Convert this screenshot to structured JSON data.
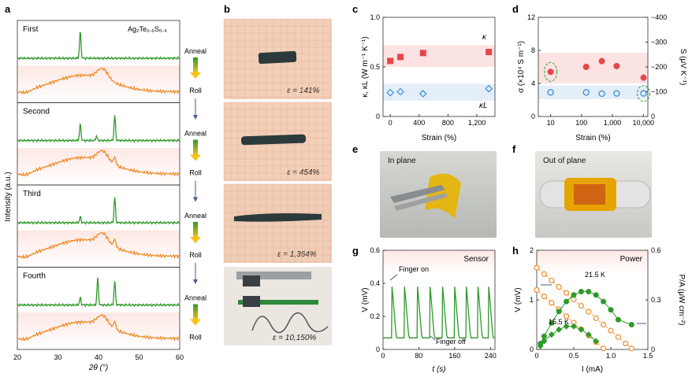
{
  "panels": {
    "a": {
      "letter": "a",
      "compound": "Ag₂Te₀.₆S₀.₄",
      "ylabel": "Intensity (a.u.)",
      "xlabel": "2θ (°)",
      "xticks": [
        "20",
        "30",
        "40",
        "50",
        "60"
      ],
      "rows": [
        "First",
        "Second",
        "Third",
        "Fourth"
      ],
      "steps": {
        "anneal": "Anneal",
        "roll": "Roll"
      }
    },
    "b": {
      "letter": "b",
      "strains": [
        "ε = 141%",
        "ε = 454%",
        "ε = 1,364%",
        "ε = 10,150%"
      ]
    },
    "e": {
      "letter": "e",
      "title": "In plane"
    },
    "f": {
      "letter": "f",
      "title": "Out of plane"
    }
  },
  "chart_data": [
    {
      "id": "c",
      "type": "scatter",
      "letter": "c",
      "xlabel": "Strain (%)",
      "ylabel": "κ, κL (W m⁻¹ K⁻¹)",
      "xticks": [
        "0",
        "400",
        "800",
        "1,200"
      ],
      "yticks": [
        "0",
        "0.5",
        "1.0"
      ],
      "xlim": [
        -100,
        1450
      ],
      "ylim": [
        0,
        1.0
      ],
      "series": [
        {
          "name": "κ",
          "marker": "square",
          "color": "#e8454b",
          "x": [
            0,
            141,
            454,
            1364
          ],
          "y": [
            0.56,
            0.6,
            0.64,
            0.65
          ]
        },
        {
          "name": "κL",
          "marker": "diamond",
          "color": "#3a90d8",
          "x": [
            0,
            141,
            454,
            1364
          ],
          "y": [
            0.24,
            0.25,
            0.23,
            0.28
          ]
        }
      ]
    },
    {
      "id": "d",
      "type": "scatter",
      "letter": "d",
      "xlabel": "Strain (%)",
      "ylabel": "σ (×10⁴ S m⁻¹)",
      "y2label": "S (μV K⁻¹)",
      "xscale": "log",
      "xticks": [
        "10",
        "100",
        "1,000",
        "10,000"
      ],
      "yticks": [
        "0",
        "4",
        "8",
        "12"
      ],
      "y2ticks": [
        "0",
        "−100",
        "−200",
        "−300",
        "−400"
      ],
      "xlim": [
        4,
        14000
      ],
      "ylim": [
        0,
        12
      ],
      "y2lim": [
        0,
        -400
      ],
      "series": [
        {
          "name": "σ",
          "marker": "circle",
          "color": "#e8454b",
          "x": [
            10,
            141,
            454,
            1364,
            10150
          ],
          "y": [
            5.4,
            6.0,
            6.7,
            6.1,
            4.7
          ]
        },
        {
          "name": "S",
          "marker": "ring",
          "color": "#3a90d8",
          "axis": "right",
          "x": [
            10,
            141,
            454,
            1364,
            10150
          ],
          "y": [
            -97,
            -97,
            -92,
            -93,
            -93
          ]
        }
      ]
    },
    {
      "id": "g",
      "type": "line",
      "letter": "g",
      "title": "Sensor",
      "xlabel": "t (s)",
      "ylabel": "V (mV)",
      "xticks": [
        "0",
        "80",
        "160",
        "240"
      ],
      "yticks": [
        "0",
        "0.2",
        "0.4",
        "0.6"
      ],
      "xlim": [
        0,
        250
      ],
      "ylim": [
        0,
        0.6
      ],
      "baseline": 0.07,
      "peak": 0.38,
      "peak_times": [
        20,
        48,
        77,
        105,
        133,
        160,
        186,
        212,
        236
      ],
      "annotations": [
        "Finger on",
        "Finger off"
      ]
    },
    {
      "id": "h",
      "type": "scatter",
      "letter": "h",
      "title": "Power",
      "xlabel": "I (mA)",
      "ylabel": "V (mV)",
      "y2label": "P/A (μW cm⁻²)",
      "xticks": [
        "0",
        "0.5",
        "1.0",
        "1.5"
      ],
      "yticks": [
        "0",
        "1",
        "2"
      ],
      "y2ticks": [
        "0",
        "0.3",
        "0.6"
      ],
      "xlim": [
        0,
        1.5
      ],
      "ylim": [
        0,
        2
      ],
      "y2lim": [
        0,
        0.6
      ],
      "series": [
        {
          "name": "21.5 K",
          "kind": "V",
          "marker": "ring",
          "color": "#f08a24",
          "x": [
            0,
            0.1,
            0.2,
            0.3,
            0.4,
            0.5,
            0.6,
            0.7,
            0.8,
            0.9,
            1.0,
            1.1,
            1.2,
            1.28
          ],
          "y": [
            1.65,
            1.52,
            1.39,
            1.26,
            1.14,
            1.01,
            0.88,
            0.76,
            0.63,
            0.5,
            0.38,
            0.25,
            0.12,
            0.02
          ]
        },
        {
          "name": "15.5 K",
          "kind": "V",
          "marker": "ring",
          "color": "#f08a24",
          "x": [
            0,
            0.1,
            0.2,
            0.3,
            0.4,
            0.5,
            0.6,
            0.7,
            0.8,
            0.9
          ],
          "y": [
            1.2,
            1.07,
            0.94,
            0.81,
            0.67,
            0.54,
            0.41,
            0.28,
            0.15,
            0.02
          ]
        },
        {
          "name": "21.5 K",
          "kind": "P",
          "marker": "circle",
          "color": "#2e9a2a",
          "axis": "right",
          "x": [
            0.05,
            0.1,
            0.2,
            0.3,
            0.4,
            0.5,
            0.6,
            0.7,
            0.8,
            0.9,
            1.0,
            1.1,
            1.28
          ],
          "y": [
            0.035,
            0.08,
            0.16,
            0.23,
            0.29,
            0.33,
            0.35,
            0.35,
            0.33,
            0.29,
            0.24,
            0.18,
            0.15
          ]
        },
        {
          "name": "15.5 K",
          "kind": "P",
          "marker": "diamond",
          "color": "#2e9a2a",
          "axis": "right",
          "x": [
            0.05,
            0.1,
            0.2,
            0.3,
            0.4,
            0.5,
            0.6,
            0.7,
            0.8
          ],
          "y": [
            0.02,
            0.05,
            0.09,
            0.12,
            0.14,
            0.14,
            0.12,
            0.09,
            0.05
          ]
        }
      ]
    }
  ],
  "colors": {
    "green": "#2e9a2a",
    "orange": "#f08a24",
    "red": "#e8454b",
    "blue": "#3a90d8",
    "arrow": "#4a5d8a"
  }
}
